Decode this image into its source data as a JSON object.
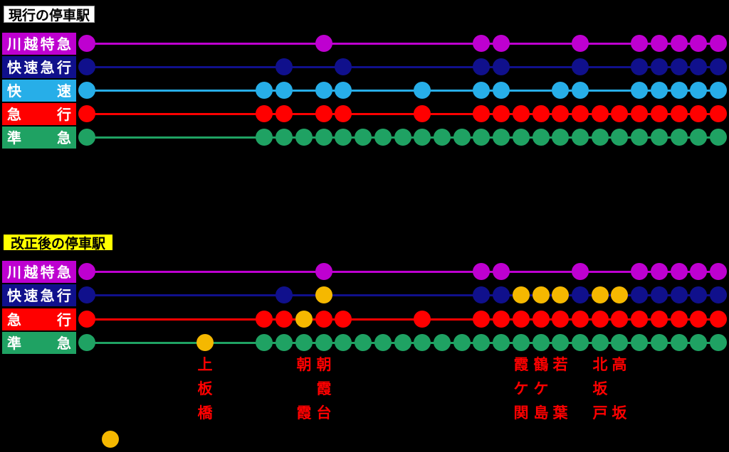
{
  "colors": {
    "purple": "#BE00D0",
    "navy": "#10108C",
    "cyan": "#27AEE8",
    "red": "#FF0000",
    "green": "#1FA263",
    "yellow": "#F5B800",
    "station_label": "#FF0000",
    "service_label_text": "#FFFFFF",
    "title_current_bg": "#FFFFFF",
    "title_current_border": "#9E9E9E",
    "title_current_text": "#000000",
    "title_revised_bg": "#FFFF00",
    "title_revised_border": "#000000",
    "title_revised_text": "#000000",
    "background": "#000000"
  },
  "current": {
    "title": "現行の停車駅",
    "rows": [
      {
        "id": "kawagoe-ltd-express",
        "label": "川越特急",
        "color": "purple",
        "stops": [
          0,
          12,
          20,
          21,
          25,
          28,
          29,
          30,
          31,
          32
        ],
        "new_stops": []
      },
      {
        "id": "rapid-express",
        "label": "快速急行",
        "color": "navy",
        "stops": [
          0,
          10,
          13,
          20,
          21,
          25,
          28,
          29,
          30,
          31,
          32
        ],
        "new_stops": []
      },
      {
        "id": "rapid",
        "label": "快速",
        "color": "cyan",
        "stops": [
          0,
          9,
          10,
          12,
          13,
          17,
          20,
          21,
          24,
          25,
          28,
          29,
          30,
          31,
          32
        ],
        "new_stops": []
      },
      {
        "id": "express",
        "label": "急行",
        "color": "red",
        "stops": [
          0,
          9,
          10,
          12,
          13,
          17,
          20,
          21,
          22,
          23,
          24,
          25,
          26,
          27,
          28,
          29,
          30,
          31,
          32
        ],
        "new_stops": []
      },
      {
        "id": "semi-express",
        "label": "準急",
        "color": "green",
        "stops": [
          0,
          9,
          10,
          11,
          12,
          13,
          14,
          15,
          16,
          17,
          18,
          19,
          20,
          21,
          22,
          23,
          24,
          25,
          26,
          27,
          28,
          29,
          30,
          31,
          32
        ],
        "new_stops": []
      }
    ]
  },
  "revised": {
    "title": "改正後の停車駅",
    "rows": [
      {
        "id": "kawagoe-ltd-express",
        "label": "川越特急",
        "color": "purple",
        "stops": [
          0,
          12,
          20,
          21,
          25,
          28,
          29,
          30,
          31,
          32
        ],
        "new_stops": []
      },
      {
        "id": "rapid-express",
        "label": "快速急行",
        "color": "navy",
        "stops": [
          0,
          10,
          12,
          20,
          21,
          22,
          23,
          24,
          25,
          26,
          27,
          28,
          29,
          30,
          31,
          32
        ],
        "new_stops": [
          12,
          22,
          23,
          24,
          26,
          27
        ]
      },
      {
        "id": "express",
        "label": "急行",
        "color": "red",
        "stops": [
          0,
          9,
          10,
          11,
          12,
          13,
          17,
          20,
          21,
          22,
          23,
          24,
          25,
          26,
          27,
          28,
          29,
          30,
          31,
          32
        ],
        "new_stops": [
          11
        ]
      },
      {
        "id": "semi-express",
        "label": "準急",
        "color": "green",
        "stops": [
          0,
          6,
          9,
          10,
          11,
          12,
          13,
          14,
          15,
          16,
          17,
          18,
          19,
          20,
          21,
          22,
          23,
          24,
          25,
          26,
          27,
          28,
          29,
          30,
          31,
          32
        ],
        "new_stops": [
          6
        ]
      }
    ]
  },
  "station_labels": [
    {
      "station": 6,
      "name": "上板橋",
      "chars": [
        {
          "c": "上",
          "row": 0
        },
        {
          "c": "板",
          "row": 1
        },
        {
          "c": "橋",
          "row": 2
        }
      ]
    },
    {
      "station": 11,
      "name": "朝霞",
      "chars": [
        {
          "c": "朝",
          "row": 0
        },
        {
          "c": "霞",
          "row": 2
        }
      ]
    },
    {
      "station": 12,
      "name": "朝霞台",
      "chars": [
        {
          "c": "朝",
          "row": 0
        },
        {
          "c": "霞",
          "row": 1
        },
        {
          "c": "台",
          "row": 2
        }
      ]
    },
    {
      "station": 22,
      "name": "霞ケ関",
      "chars": [
        {
          "c": "霞",
          "row": 0
        },
        {
          "c": "ケ",
          "row": 1
        },
        {
          "c": "関",
          "row": 2
        }
      ]
    },
    {
      "station": 23,
      "name": "鶴ケ島",
      "chars": [
        {
          "c": "鶴",
          "row": 0
        },
        {
          "c": "ケ",
          "row": 1
        },
        {
          "c": "島",
          "row": 2
        }
      ]
    },
    {
      "station": 24,
      "name": "若葉",
      "chars": [
        {
          "c": "若",
          "row": 0
        },
        {
          "c": "葉",
          "row": 2
        }
      ]
    },
    {
      "station": 26,
      "name": "北坂戸",
      "chars": [
        {
          "c": "北",
          "row": 0
        },
        {
          "c": "坂",
          "row": 1
        },
        {
          "c": "戸",
          "row": 2
        }
      ]
    },
    {
      "station": 27,
      "name": "高坂",
      "chars": [
        {
          "c": "高",
          "row": 0
        },
        {
          "c": "坂",
          "row": 2
        }
      ]
    }
  ],
  "legend": {
    "new_stop_dot_color": "yellow"
  }
}
